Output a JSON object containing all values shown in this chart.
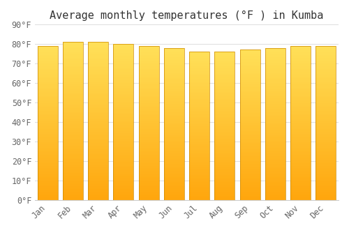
{
  "title": "Average monthly temperatures (°F ) in Kumba",
  "months": [
    "Jan",
    "Feb",
    "Mar",
    "Apr",
    "May",
    "Jun",
    "Jul",
    "Aug",
    "Sep",
    "Oct",
    "Nov",
    "Dec"
  ],
  "values": [
    79,
    81,
    81,
    80,
    79,
    78,
    76,
    76,
    77,
    78,
    79,
    79
  ],
  "bar_color_top": "#FFAA00",
  "bar_color_bottom": "#FFD966",
  "bar_edge_color": "#CC8800",
  "background_color": "#FFFFFF",
  "grid_color": "#DDDDDD",
  "ylim": [
    0,
    90
  ],
  "ytick_step": 10,
  "title_fontsize": 11,
  "tick_fontsize": 8.5,
  "font_family": "monospace",
  "bar_width": 0.8,
  "n_gradient_steps": 100
}
